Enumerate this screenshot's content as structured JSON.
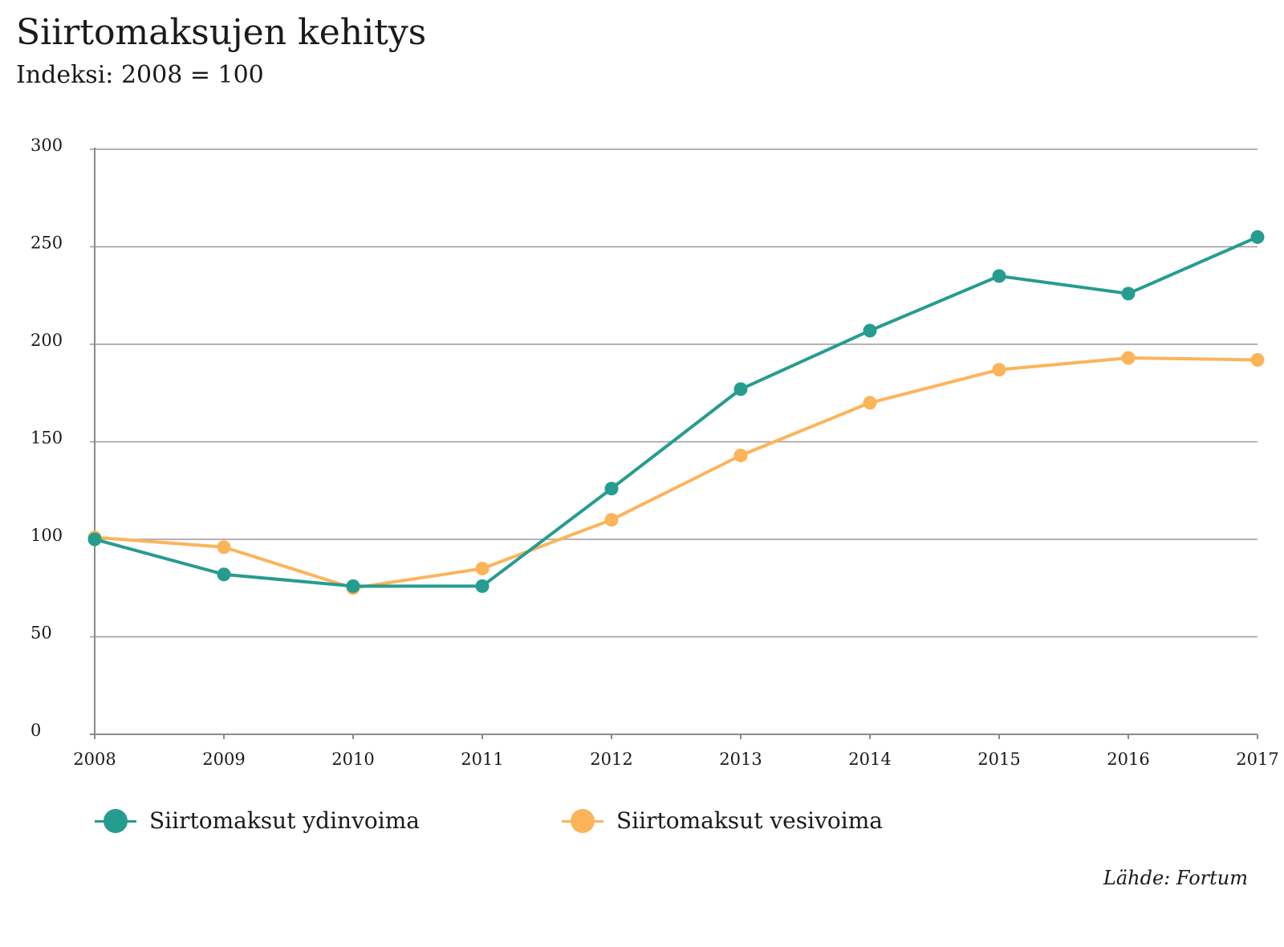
{
  "header": {
    "title": "Siirtomaksujen kehitys",
    "subtitle": "Indeksi: 2008 = 100"
  },
  "source": "Lähde: Fortum",
  "colors": {
    "ydinvoima": "#269c8f",
    "vesivoima": "#fcb45a",
    "grid": "#9a9a9a",
    "axis": "#8a8a8a"
  },
  "chart_data": {
    "type": "line",
    "title": "Siirtomaksujen kehitys",
    "subtitle": "Indeksi: 2008 = 100",
    "xlabel": "",
    "ylabel": "",
    "x": [
      "2008",
      "2009",
      "2010",
      "2011",
      "2012",
      "2013",
      "2014",
      "2015",
      "2016",
      "2017"
    ],
    "ylim": [
      0,
      300
    ],
    "yticks": [
      0,
      50,
      100,
      150,
      200,
      250,
      300
    ],
    "grid": true,
    "legend": "bottom",
    "series": [
      {
        "name": "Siirtomaksut ydinvoima",
        "color": "#269c8f",
        "values": [
          100,
          82,
          76,
          76,
          126,
          177,
          207,
          235,
          226,
          255
        ]
      },
      {
        "name": "Siirtomaksut vesivoima",
        "color": "#fcb45a",
        "values": [
          101,
          96,
          75,
          85,
          110,
          143,
          170,
          187,
          193,
          192
        ]
      }
    ]
  }
}
